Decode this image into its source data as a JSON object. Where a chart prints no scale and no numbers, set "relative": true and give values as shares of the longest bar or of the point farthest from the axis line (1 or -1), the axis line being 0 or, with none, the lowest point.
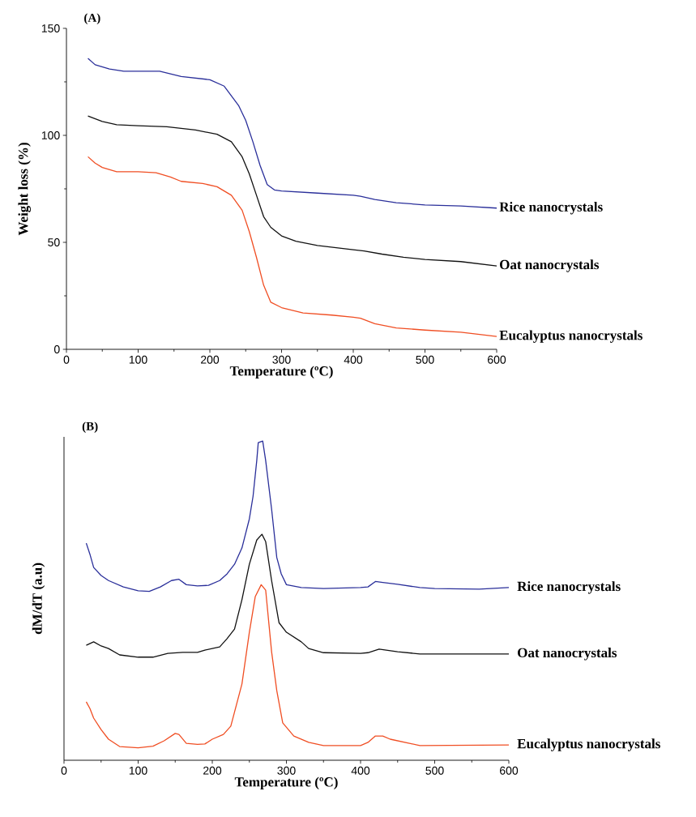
{
  "chart_data": [
    {
      "type": "line",
      "title": "(A)",
      "xlabel": "Temperature (ºC)",
      "ylabel": "Weight loss (%)",
      "xlim": [
        0,
        600
      ],
      "ylim": [
        0,
        150
      ],
      "xticks": [
        0,
        100,
        200,
        300,
        400,
        500,
        600
      ],
      "yticks": [
        0,
        50,
        100,
        150
      ],
      "series": [
        {
          "name": "Rice nanocrystals",
          "color": "#2a2f9a",
          "x": [
            30,
            40,
            60,
            80,
            130,
            160,
            200,
            220,
            240,
            250,
            260,
            270,
            280,
            290,
            300,
            350,
            400,
            410,
            430,
            460,
            500,
            550,
            600
          ],
          "values": [
            136,
            133,
            131,
            130,
            130,
            127.5,
            126,
            123,
            114,
            107,
            97,
            86,
            77,
            74.5,
            74,
            73,
            72,
            71.5,
            70,
            68.5,
            67.5,
            67,
            66
          ]
        },
        {
          "name": "Oat nanocrystals",
          "color": "#111111",
          "x": [
            30,
            50,
            70,
            100,
            140,
            180,
            210,
            230,
            245,
            255,
            265,
            275,
            285,
            300,
            320,
            350,
            400,
            415,
            440,
            470,
            500,
            550,
            600
          ],
          "values": [
            109,
            106.5,
            105,
            104.5,
            104,
            102.5,
            100.5,
            97,
            90,
            82,
            72,
            62,
            57,
            53,
            50.5,
            48.5,
            46.5,
            46,
            44.5,
            43,
            42,
            41,
            39
          ]
        },
        {
          "name": "Eucalyptus nanocrystals",
          "color": "#f04e23",
          "x": [
            30,
            40,
            50,
            70,
            100,
            125,
            145,
            160,
            190,
            210,
            230,
            245,
            255,
            265,
            275,
            285,
            300,
            330,
            370,
            400,
            410,
            430,
            460,
            500,
            550,
            600
          ],
          "values": [
            90,
            87,
            85,
            83,
            83,
            82.5,
            80.5,
            78.5,
            77.5,
            76,
            72,
            65,
            55,
            43,
            30,
            22,
            19.5,
            17,
            16,
            15,
            14.5,
            12,
            10,
            9,
            8,
            6
          ]
        }
      ]
    },
    {
      "type": "line",
      "title": "(B)",
      "xlabel": "Temperature (ºC)",
      "ylabel": "dM/dT (a.u)",
      "relative": true,
      "xlim": [
        0,
        600
      ],
      "xticks": [
        0,
        100,
        200,
        300,
        400,
        500,
        600
      ],
      "series": [
        {
          "name": "Rice nanocrystals",
          "color": "#2a2f9a",
          "x": [
            30,
            35,
            40,
            50,
            60,
            80,
            100,
            115,
            130,
            145,
            155,
            165,
            180,
            195,
            210,
            220,
            230,
            240,
            250,
            255,
            260,
            262,
            268,
            272,
            280,
            287,
            293,
            300,
            320,
            350,
            400,
            410,
            420,
            430,
            450,
            480,
            500,
            560,
            600
          ],
          "values": [
            0.68,
            0.645,
            0.604,
            0.579,
            0.563,
            0.543,
            0.531,
            0.529,
            0.543,
            0.563,
            0.567,
            0.55,
            0.546,
            0.548,
            0.563,
            0.584,
            0.614,
            0.665,
            0.756,
            0.827,
            0.939,
            0.995,
            1,
            0.939,
            0.787,
            0.635,
            0.584,
            0.55,
            0.541,
            0.538,
            0.541,
            0.543,
            0.56,
            0.557,
            0.551,
            0.541,
            0.538,
            0.536,
            0.541
          ]
        },
        {
          "name": "Oat nanocrystals",
          "color": "#111111",
          "x": [
            30,
            40,
            50,
            60,
            75,
            100,
            120,
            140,
            160,
            180,
            190,
            210,
            220,
            230,
            240,
            250,
            260,
            267,
            272,
            280,
            290,
            300,
            320,
            330,
            350,
            400,
            410,
            425,
            450,
            480,
            600
          ],
          "values": [
            0.36,
            0.371,
            0.358,
            0.35,
            0.33,
            0.323,
            0.323,
            0.335,
            0.338,
            0.338,
            0.345,
            0.355,
            0.381,
            0.411,
            0.503,
            0.614,
            0.69,
            0.708,
            0.685,
            0.563,
            0.431,
            0.401,
            0.371,
            0.35,
            0.337,
            0.335,
            0.337,
            0.348,
            0.34,
            0.333,
            0.333
          ]
        },
        {
          "name": "Eucalyptus nanocrystals",
          "color": "#f04e23",
          "x": [
            30,
            35,
            40,
            50,
            60,
            75,
            100,
            120,
            135,
            150,
            155,
            165,
            180,
            190,
            200,
            215,
            225,
            240,
            250,
            258,
            266,
            272,
            280,
            287,
            295,
            310,
            330,
            350,
            400,
            410,
            420,
            430,
            440,
            460,
            480,
            600
          ],
          "values": [
            0.183,
            0.162,
            0.132,
            0.096,
            0.066,
            0.043,
            0.039,
            0.044,
            0.061,
            0.084,
            0.081,
            0.053,
            0.05,
            0.051,
            0.066,
            0.081,
            0.107,
            0.239,
            0.401,
            0.513,
            0.55,
            0.533,
            0.34,
            0.218,
            0.117,
            0.076,
            0.056,
            0.046,
            0.046,
            0.056,
            0.076,
            0.076,
            0.066,
            0.056,
            0.046,
            0.048
          ]
        }
      ]
    }
  ]
}
